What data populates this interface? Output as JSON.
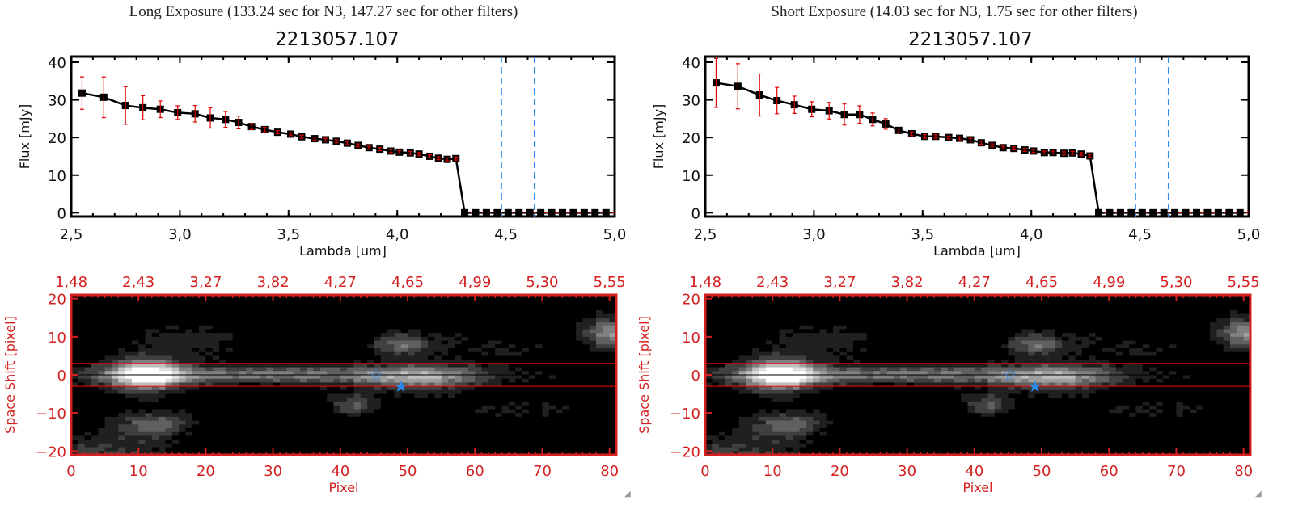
{
  "colors": {
    "axis": "#000",
    "errorbar": "#e00000",
    "filter_line": "#2a8cf0",
    "image_axis": "#d42020",
    "star": "#2a8cf0"
  },
  "panels": [
    {
      "title": "Long Exposure (133.24 sec for N3, 147.27 sec for other filters)",
      "object": "2213057.107"
    },
    {
      "title": "Short Exposure (14.03 sec for N3, 1.75 sec for other filters)",
      "object": "2213057.107"
    }
  ],
  "chart_data": [
    {
      "type": "line",
      "panel": 0,
      "title": "2213057.107",
      "xlabel": "Lambda [um]",
      "ylabel": "Flux [mJy]",
      "xlim": [
        2.5,
        5.0
      ],
      "ylim": [
        -1,
        41.5
      ],
      "xticks": [
        "2.5",
        "3.0",
        "3.5",
        "4.0",
        "4.5",
        "5.0"
      ],
      "yticks": [
        "0",
        "10",
        "20",
        "30",
        "40"
      ],
      "x": [
        2.55,
        2.65,
        2.75,
        2.83,
        2.91,
        2.99,
        3.07,
        3.14,
        3.21,
        3.27,
        3.33,
        3.39,
        3.45,
        3.51,
        3.56,
        3.62,
        3.67,
        3.72,
        3.77,
        3.82,
        3.87,
        3.92,
        3.97,
        4.01,
        4.06,
        4.1,
        4.15,
        4.19,
        4.23,
        4.27,
        4.31,
        4.36,
        4.41,
        4.46,
        4.51,
        4.56,
        4.61,
        4.66,
        4.71,
        4.76,
        4.81,
        4.86,
        4.91,
        4.96
      ],
      "y": [
        31.8,
        30.7,
        28.5,
        27.9,
        27.5,
        26.6,
        26.3,
        25.2,
        24.8,
        24.0,
        22.9,
        22.1,
        21.4,
        20.9,
        20.2,
        19.7,
        19.4,
        19.0,
        18.5,
        17.9,
        17.3,
        16.9,
        16.4,
        16.1,
        15.9,
        15.6,
        15.0,
        14.5,
        14.2,
        14.4,
        0,
        0,
        0,
        0,
        0,
        0,
        0,
        0,
        0,
        0,
        0,
        0,
        0,
        0
      ],
      "err": [
        4.3,
        5.4,
        5.0,
        3.2,
        2.2,
        1.8,
        2.2,
        2.7,
        2.1,
        1.7,
        0.8,
        0.6,
        0.4,
        0.4,
        0.4,
        0.4,
        0.4,
        0.4,
        0.4,
        0.4,
        0.4,
        0.4,
        0.4,
        0.4,
        0.4,
        0.4,
        0.4,
        0.4,
        0.4,
        0.4,
        0,
        0,
        0,
        0,
        0,
        0,
        0,
        0,
        0,
        0,
        0,
        0,
        0,
        0
      ],
      "filter_lines": [
        4.48,
        4.63
      ]
    },
    {
      "type": "line",
      "panel": 1,
      "title": "2213057.107",
      "xlabel": "Lambda [um]",
      "ylabel": "Flux [mJy]",
      "xlim": [
        2.5,
        5.0
      ],
      "ylim": [
        -1,
        41.5
      ],
      "xticks": [
        "2.5",
        "3.0",
        "3.5",
        "4.0",
        "4.5",
        "5.0"
      ],
      "yticks": [
        "0",
        "10",
        "20",
        "30",
        "40"
      ],
      "x": [
        2.55,
        2.65,
        2.75,
        2.83,
        2.91,
        2.99,
        3.07,
        3.14,
        3.21,
        3.27,
        3.33,
        3.39,
        3.45,
        3.51,
        3.56,
        3.62,
        3.67,
        3.72,
        3.77,
        3.82,
        3.87,
        3.92,
        3.97,
        4.01,
        4.06,
        4.1,
        4.15,
        4.19,
        4.23,
        4.27,
        4.31,
        4.36,
        4.41,
        4.46,
        4.51,
        4.56,
        4.61,
        4.66,
        4.71,
        4.76,
        4.81,
        4.86,
        4.91,
        4.96
      ],
      "y": [
        34.5,
        33.6,
        31.3,
        29.8,
        28.7,
        27.5,
        27.1,
        26.1,
        26.1,
        24.8,
        23.6,
        21.9,
        21.0,
        20.3,
        20.3,
        20.0,
        19.8,
        19.4,
        18.6,
        17.9,
        17.3,
        17.1,
        16.7,
        16.4,
        16.0,
        16.0,
        15.8,
        15.9,
        15.6,
        15.1,
        0,
        0,
        0,
        0,
        0,
        0,
        0,
        0,
        0,
        0,
        0,
        0,
        0,
        0
      ],
      "err": [
        6.5,
        6.0,
        5.6,
        3.5,
        2.3,
        2.0,
        2.2,
        2.8,
        2.3,
        1.7,
        1.4,
        0.6,
        0.5,
        0.5,
        0.5,
        0.4,
        0.4,
        0.4,
        0.4,
        0.4,
        0.4,
        0.4,
        0.4,
        0.4,
        0.4,
        0.4,
        0.4,
        0.4,
        0.4,
        0.4,
        0,
        0,
        0,
        0,
        0,
        0,
        0,
        0,
        0,
        0,
        0,
        0,
        0,
        0
      ],
      "filter_lines": [
        4.48,
        4.63
      ]
    },
    {
      "type": "heatmap",
      "panel": 0,
      "xlabel": "Pixel",
      "ylabel": "Space Shift [pixel]",
      "xlim": [
        0,
        81
      ],
      "ylim": [
        -21,
        21
      ],
      "xticks": [
        "0",
        "10",
        "20",
        "30",
        "40",
        "50",
        "60",
        "70",
        "80"
      ],
      "yticks": [
        "-20",
        "-10",
        "0",
        "10",
        "20"
      ],
      "top_xticks": [
        "1.48",
        "2.43",
        "3.27",
        "3.82",
        "4.27",
        "4.65",
        "4.99",
        "5.30",
        "5.55"
      ],
      "aperture_lines": [
        3,
        -3
      ],
      "center_line": 0,
      "stars": [
        {
          "x": 45.3,
          "y": 0,
          "style": "outline"
        },
        {
          "x": 49,
          "y": -3,
          "style": "filled"
        }
      ]
    },
    {
      "type": "heatmap",
      "panel": 1,
      "xlabel": "Pixel",
      "ylabel": "Space Shift [pixel]",
      "xlim": [
        0,
        81
      ],
      "ylim": [
        -21,
        21
      ],
      "xticks": [
        "0",
        "10",
        "20",
        "30",
        "40",
        "50",
        "60",
        "70",
        "80"
      ],
      "yticks": [
        "-20",
        "-10",
        "0",
        "10",
        "20"
      ],
      "top_xticks": [
        "1.48",
        "2.43",
        "3.27",
        "3.82",
        "4.27",
        "4.65",
        "4.99",
        "5.30",
        "5.55"
      ],
      "aperture_lines": [
        3,
        -3
      ],
      "center_line": 0,
      "stars": [
        {
          "x": 45.3,
          "y": 0,
          "style": "outline"
        },
        {
          "x": 49,
          "y": -3,
          "style": "filled"
        }
      ]
    }
  ]
}
